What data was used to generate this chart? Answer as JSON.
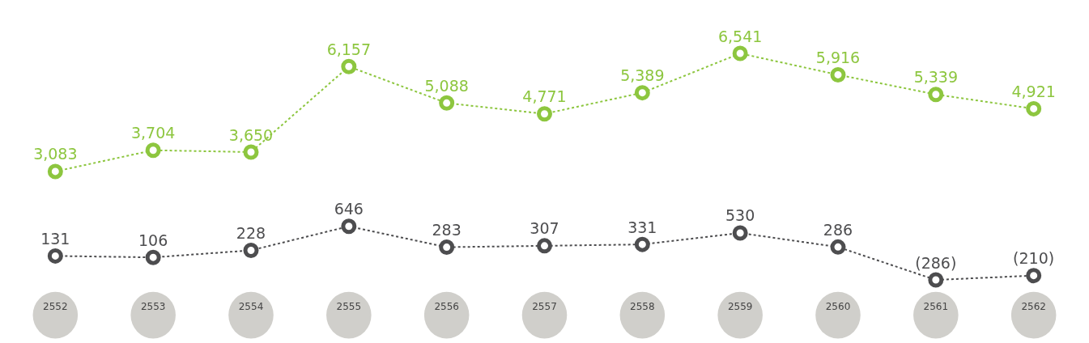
{
  "chart_data": [
    {
      "type": "line",
      "categories": [
        "2552",
        "2553",
        "2554",
        "2555",
        "2556",
        "2557",
        "2558",
        "2559",
        "2560",
        "2561",
        "2562"
      ],
      "tick_labels": false,
      "marker": "circle",
      "line_style": "dotted",
      "series": [
        {
          "color": "#8dc63f",
          "values": [
            3083,
            3704,
            3650,
            6157,
            5088,
            4771,
            5389,
            6541,
            5916,
            5339,
            4921
          ],
          "value_labels": [
            "3,083",
            "3,704",
            "3,650",
            "6,157",
            "5,088",
            "4,771",
            "5,389",
            "6,541",
            "5,916",
            "5,339",
            "4,921"
          ]
        }
      ]
    },
    {
      "type": "line",
      "categories": [
        "2552",
        "2553",
        "2554",
        "2555",
        "2556",
        "2557",
        "2558",
        "2559",
        "2560",
        "2561",
        "2562"
      ],
      "tick_labels": "x",
      "marker": "circle",
      "line_style": "dotted",
      "series": [
        {
          "color": "#4d4d4f",
          "values": [
            131,
            106,
            228,
            646,
            283,
            307,
            331,
            530,
            286,
            -286,
            -210
          ],
          "value_labels": [
            "131",
            "106",
            "228",
            "646",
            "283",
            "307",
            "331",
            "530",
            "286",
            "(286)",
            "(210)"
          ]
        }
      ]
    }
  ]
}
